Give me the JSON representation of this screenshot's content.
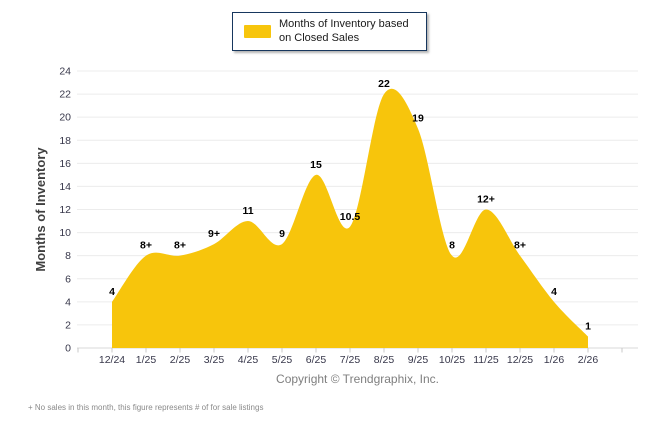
{
  "chart_data": {
    "type": "area",
    "title": "",
    "legend": "Months of Inventory based on Closed Sales",
    "legend_position": "top",
    "xlabel": "",
    "ylabel": "Months of Inventory",
    "ylim": [
      0,
      24
    ],
    "yticks": [
      0,
      2,
      4,
      6,
      8,
      10,
      12,
      14,
      16,
      18,
      20,
      22,
      24
    ],
    "grid": "horizontal",
    "smoothed": true,
    "categories": [
      "12/24",
      "1/25",
      "2/25",
      "3/25",
      "4/25",
      "5/25",
      "6/25",
      "7/25",
      "8/25",
      "9/25",
      "10/25",
      "11/25",
      "12/25",
      "1/26",
      "2/26"
    ],
    "values": [
      4,
      8,
      8,
      9,
      11,
      9,
      15,
      10.5,
      22,
      19,
      8,
      12,
      8,
      4,
      1
    ],
    "point_labels": [
      "4",
      "8+",
      "8+",
      "9+",
      "11",
      "9",
      "15",
      "10.5",
      "22",
      "19",
      "8",
      "12+",
      "8+",
      "4",
      "1"
    ]
  },
  "footer": {
    "copyright": "Copyright © Trendgraphix, Inc.",
    "footnote": "+ No sales in this month, this figure represents # of for sale listings"
  },
  "colors": {
    "area_fill": "#F7C50C",
    "gridline": "#ECECEC",
    "axis_line": "#D9D9D9",
    "tick": "#C9C9C9",
    "axis_text": "#37374a",
    "data_label": "#000000",
    "ylabel_text": "#404040",
    "legend_border": "#17375E",
    "muted_text": "#7F7F7F"
  }
}
